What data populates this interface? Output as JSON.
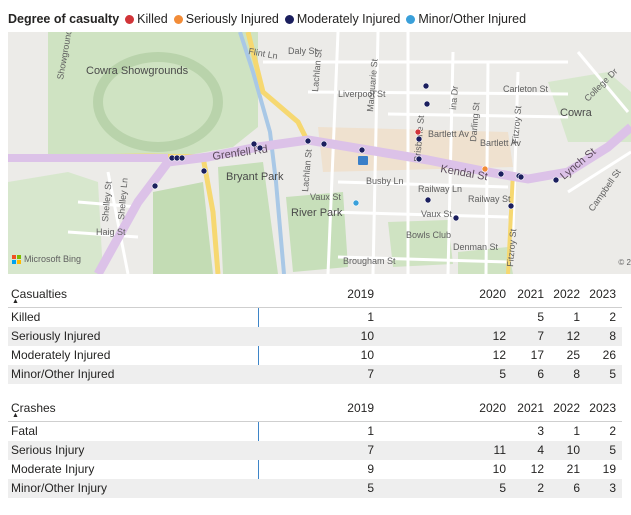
{
  "legend": {
    "title": "Degree of casualty",
    "items": [
      {
        "label": "Killed",
        "color": "#d13438"
      },
      {
        "label": "Seriously Injured",
        "color": "#f28c38"
      },
      {
        "label": "Moderately Injured",
        "color": "#1b1f5e"
      },
      {
        "label": "Minor/Other Injured",
        "color": "#3aa0da"
      }
    ]
  },
  "map": {
    "labels": {
      "showgrounds": "Cowra Showgrounds",
      "showground_rd": "Showground",
      "grenfell_rd": "Grenfell Rd",
      "kendal_st": "Kendal St",
      "lynch_st": "Lynch St",
      "campbell_st": "Campbell St",
      "college_dr": "College Dr",
      "cowra": "Cowra",
      "bryant_park": "Bryant Park",
      "river_park": "River Park",
      "bowls_club": "Bowls Club",
      "flint_ln": "Flint Ln",
      "daly_st": "Daly St",
      "lachlan_st": "Lachlan St",
      "lachlan_st2": "Lachlan St",
      "macquarie_st": "Macquarie St",
      "liverpool_st": "Liverpool St",
      "carleton_st": "Carleton St",
      "bartlett_av": "Bartlett Av",
      "bartlett_av2": "Bartlett Av",
      "brisbane_st": "Brisbane St",
      "darling_st": "Darling St",
      "fitzroy_st": "Fitzroy St",
      "fitzroy_st2": "Fitzroy St",
      "busby_ln": "Busby Ln",
      "railway_ln": "Railway Ln",
      "railway_st": "Railway St",
      "vaux_st": "Vaux St",
      "vaux_st2": "Vaux St",
      "denman_st": "Denman St",
      "brougham_st": "Brougham St",
      "shelley_st": "Shelley St",
      "shelley_ln": "Shelley Ln",
      "haig_st": "Haig St",
      "ina_dr": "ina Dr"
    },
    "brand": "Microsoft Bing",
    "copyright": "© 2"
  },
  "casualties": {
    "header": "Casualties",
    "years": [
      "2019",
      "2020",
      "2021",
      "2022",
      "2023"
    ],
    "rows": [
      {
        "label": "Killed",
        "values": [
          "1",
          "",
          "5",
          "1",
          "2"
        ]
      },
      {
        "label": "Seriously Injured",
        "values": [
          "10",
          "12",
          "7",
          "12",
          "8"
        ]
      },
      {
        "label": "Moderately Injured",
        "values": [
          "10",
          "12",
          "17",
          "25",
          "26"
        ]
      },
      {
        "label": "Minor/Other Injured",
        "values": [
          "7",
          "5",
          "6",
          "8",
          "5"
        ]
      }
    ]
  },
  "crashes": {
    "header": "Crashes",
    "years": [
      "2019",
      "2020",
      "2021",
      "2022",
      "2023"
    ],
    "rows": [
      {
        "label": "Fatal",
        "values": [
          "1",
          "",
          "3",
          "1",
          "2"
        ]
      },
      {
        "label": "Serious Injury",
        "values": [
          "7",
          "11",
          "4",
          "10",
          "5"
        ]
      },
      {
        "label": "Moderate Injury",
        "values": [
          "9",
          "10",
          "12",
          "21",
          "19"
        ]
      },
      {
        "label": "Minor/Other Injury",
        "values": [
          "5",
          "5",
          "2",
          "6",
          "3"
        ]
      }
    ]
  }
}
